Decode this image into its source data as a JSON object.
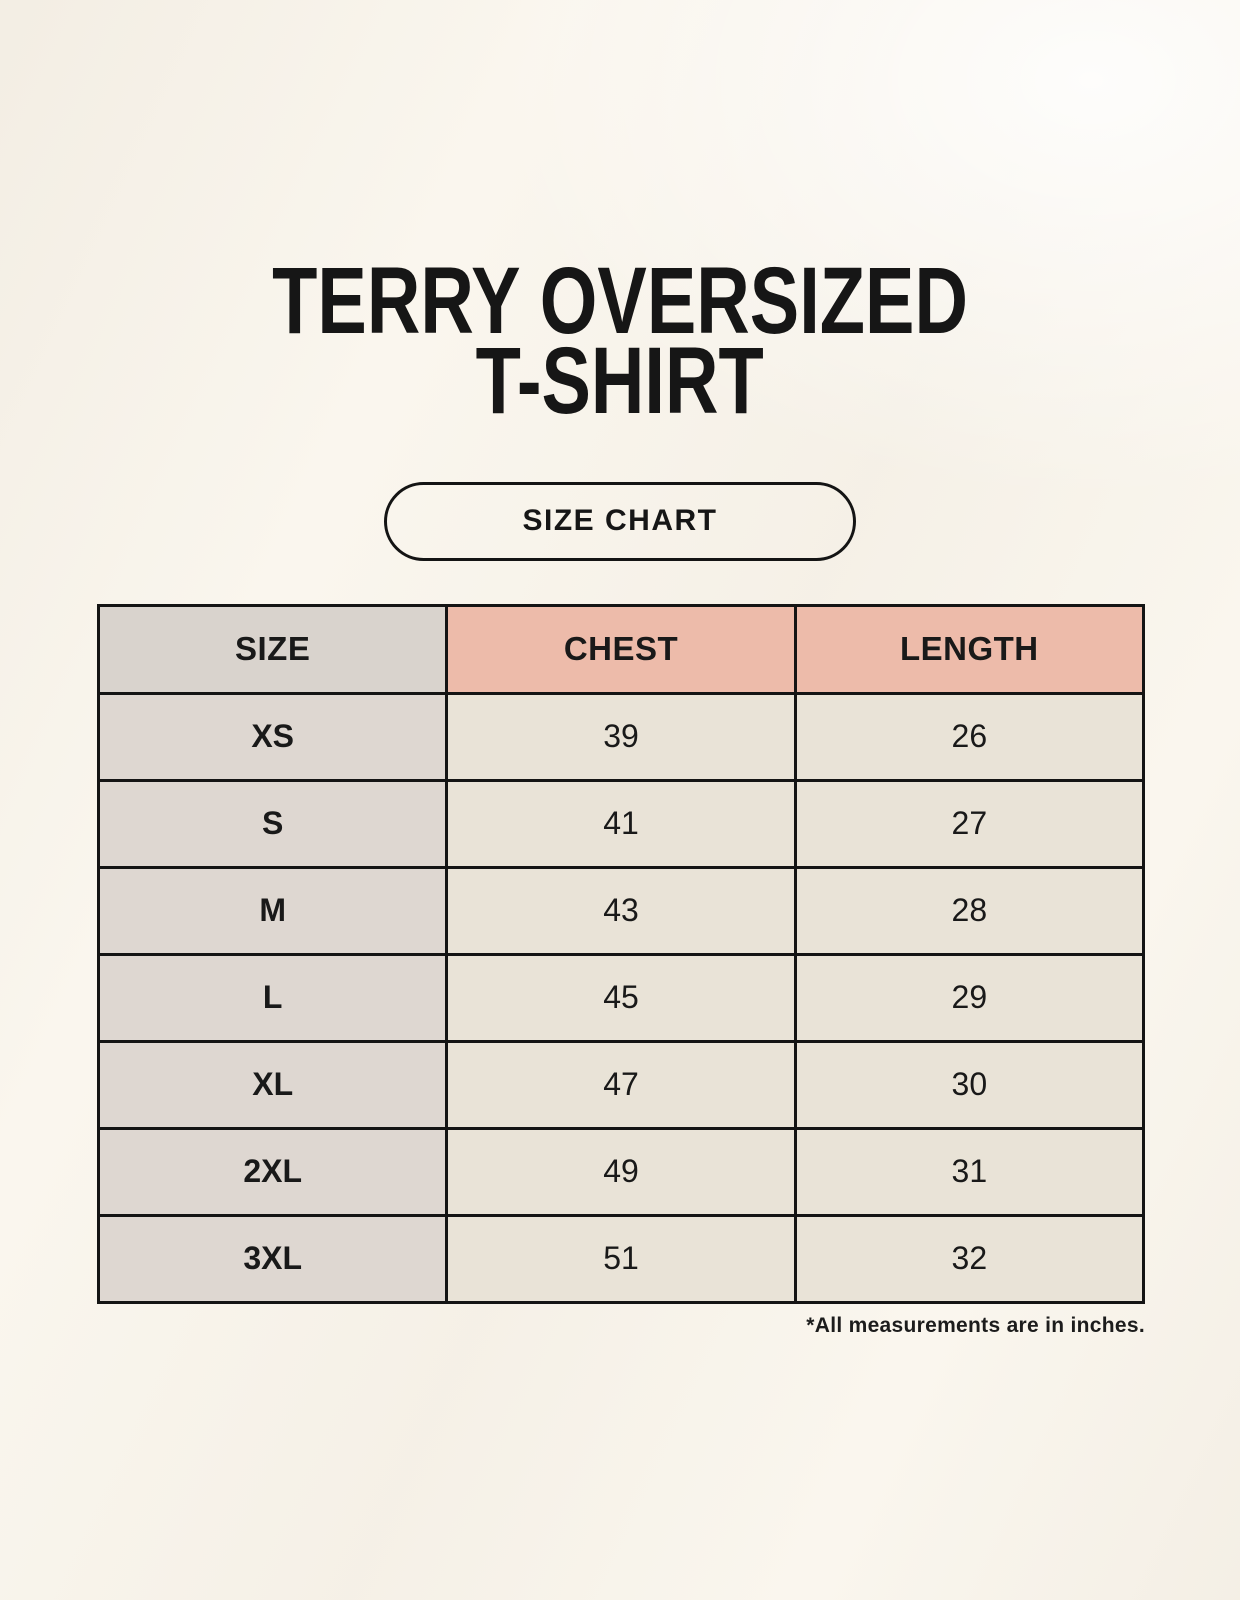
{
  "header": {
    "title_line1": "TERRY OVERSIZED",
    "title_line2": "T-SHIRT",
    "badge_label": "SIZE CHART"
  },
  "footnote": "*All measurements are in inches.",
  "colors": {
    "background": "#faf6ee",
    "header_pink": "#edbbaa",
    "header_gray": "#d9d3cd",
    "size_column_bg": "#ded7d1",
    "data_cell_bg": "#e9e3d7",
    "border": "#141414",
    "text": "#191919"
  },
  "chart_data": {
    "type": "table",
    "title": "TERRY OVERSIZED T-SHIRT",
    "columns": [
      "SIZE",
      "CHEST",
      "LENGTH"
    ],
    "rows": [
      [
        "XS",
        "39",
        "26"
      ],
      [
        "S",
        "41",
        "27"
      ],
      [
        "M",
        "43",
        "28"
      ],
      [
        "L",
        "45",
        "29"
      ],
      [
        "XL",
        "47",
        "30"
      ],
      [
        "2XL",
        "49",
        "31"
      ],
      [
        "3XL",
        "51",
        "32"
      ]
    ],
    "note": "*All measurements are in inches.",
    "units": "inches"
  }
}
